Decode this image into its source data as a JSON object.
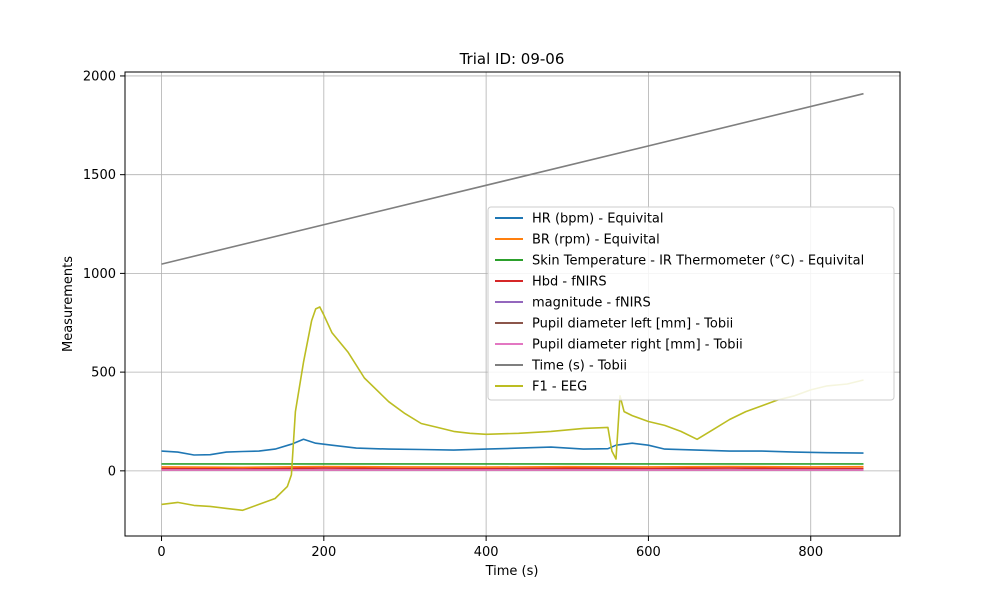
{
  "chart_data": {
    "type": "line",
    "title": "Trial ID: 09-06",
    "xlabel": "Time (s)",
    "ylabel": "Measurements",
    "xlim": [
      -45,
      910
    ],
    "ylim": [
      -330,
      2020
    ],
    "xticks": [
      0,
      200,
      400,
      600,
      800
    ],
    "yticks": [
      0,
      500,
      1000,
      1500,
      2000
    ],
    "grid": true,
    "legend_position": "center-right",
    "series": [
      {
        "name": "HR (bpm) - Equivital",
        "color": "#1f77b4",
        "x": [
          0,
          20,
          40,
          60,
          80,
          100,
          120,
          140,
          160,
          175,
          190,
          210,
          240,
          280,
          320,
          360,
          400,
          440,
          480,
          520,
          550,
          560,
          580,
          600,
          620,
          660,
          700,
          740,
          780,
          820,
          865
        ],
        "y": [
          100,
          95,
          80,
          82,
          95,
          98,
          100,
          110,
          135,
          160,
          140,
          130,
          115,
          110,
          108,
          105,
          110,
          115,
          120,
          110,
          112,
          130,
          140,
          130,
          110,
          105,
          100,
          100,
          95,
          92,
          90
        ]
      },
      {
        "name": "BR (rpm) - Equivital",
        "color": "#ff7f0e",
        "x": [
          0,
          100,
          200,
          300,
          400,
          500,
          600,
          700,
          800,
          865
        ],
        "y": [
          20,
          18,
          22,
          20,
          19,
          21,
          20,
          22,
          20,
          21
        ]
      },
      {
        "name": "Skin Temperature - IR Thermometer (°C) - Equivital",
        "color": "#2ca02c",
        "x": [
          0,
          865
        ],
        "y": [
          35,
          35
        ]
      },
      {
        "name": "Hbd - fNIRS",
        "color": "#d62728",
        "x": [
          0,
          100,
          200,
          300,
          400,
          500,
          600,
          700,
          800,
          865
        ],
        "y": [
          12,
          10,
          14,
          12,
          11,
          13,
          12,
          14,
          12,
          12
        ]
      },
      {
        "name": "magnitude - fNIRS",
        "color": "#9467bd",
        "x": [
          0,
          865
        ],
        "y": [
          5,
          5
        ]
      },
      {
        "name": "Pupil diameter left [mm] - Tobii",
        "color": "#8c564b",
        "x": [
          0,
          865
        ],
        "y": [
          4,
          4
        ]
      },
      {
        "name": "Pupil diameter right [mm] - Tobii",
        "color": "#e377c2",
        "x": [
          0,
          865
        ],
        "y": [
          4,
          4
        ]
      },
      {
        "name": "Time (s) - Tobii",
        "color": "#7f7f7f",
        "x": [
          0,
          865
        ],
        "y": [
          1047,
          1910
        ]
      },
      {
        "name": "F1 - EEG",
        "color": "#bcbd22",
        "x": [
          0,
          20,
          40,
          60,
          80,
          100,
          120,
          140,
          155,
          160,
          165,
          175,
          185,
          190,
          195,
          200,
          210,
          230,
          250,
          280,
          300,
          320,
          340,
          360,
          380,
          400,
          440,
          480,
          520,
          550,
          555,
          560,
          565,
          570,
          580,
          600,
          620,
          640,
          660,
          680,
          700,
          720,
          740,
          760,
          780,
          800,
          820,
          845,
          865
        ],
        "y": [
          -170,
          -160,
          -175,
          -180,
          -190,
          -200,
          -170,
          -140,
          -80,
          -20,
          300,
          550,
          760,
          820,
          830,
          790,
          700,
          600,
          470,
          350,
          290,
          240,
          220,
          200,
          190,
          185,
          190,
          200,
          215,
          220,
          100,
          60,
          380,
          300,
          280,
          250,
          230,
          200,
          160,
          210,
          260,
          300,
          330,
          360,
          380,
          410,
          430,
          440,
          460
        ]
      }
    ]
  }
}
